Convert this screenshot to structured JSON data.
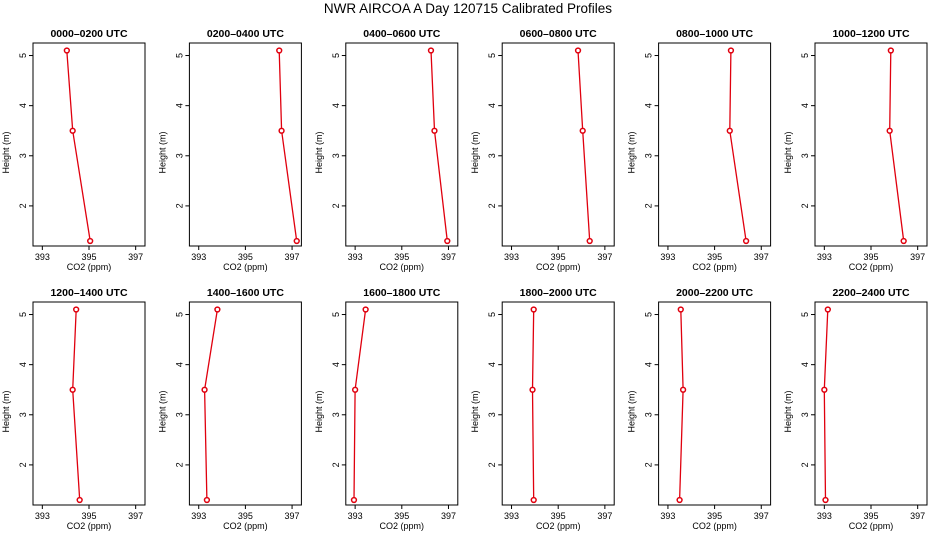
{
  "title": "NWR AIRCOA A  Day 120715  Calibrated Profiles",
  "chart_data": {
    "type": "line",
    "x_label": "CO2 (ppm)",
    "y_label": "Height (m)",
    "x_ticks": [
      393,
      395,
      397
    ],
    "x_tick_labels": [
      "393",
      "395",
      "397"
    ],
    "y_ticks": [
      2,
      3,
      4,
      5
    ],
    "y_tick_labels": [
      "2",
      "3",
      "4",
      "5"
    ],
    "xlim": [
      392.6,
      397.4
    ],
    "ylim": [
      1.2,
      5.25
    ],
    "series_color": "#e0000e",
    "panels": [
      {
        "title": "0000–0200 UTC",
        "points": [
          {
            "x": 395.05,
            "y": 1.3
          },
          {
            "x": 394.3,
            "y": 3.5
          },
          {
            "x": 394.05,
            "y": 5.1
          }
        ]
      },
      {
        "title": "0200–0400 UTC",
        "points": [
          {
            "x": 397.2,
            "y": 1.3
          },
          {
            "x": 396.55,
            "y": 3.5
          },
          {
            "x": 396.45,
            "y": 5.1
          }
        ]
      },
      {
        "title": "0400–0600 UTC",
        "points": [
          {
            "x": 396.95,
            "y": 1.3
          },
          {
            "x": 396.4,
            "y": 3.5
          },
          {
            "x": 396.25,
            "y": 5.1
          }
        ]
      },
      {
        "title": "0600–0800 UTC",
        "points": [
          {
            "x": 396.35,
            "y": 1.3
          },
          {
            "x": 396.05,
            "y": 3.5
          },
          {
            "x": 395.85,
            "y": 5.1
          }
        ]
      },
      {
        "title": "0800–1000 UTC",
        "points": [
          {
            "x": 396.35,
            "y": 1.3
          },
          {
            "x": 395.65,
            "y": 3.5
          },
          {
            "x": 395.7,
            "y": 5.1
          }
        ]
      },
      {
        "title": "1000–1200 UTC",
        "points": [
          {
            "x": 396.4,
            "y": 1.3
          },
          {
            "x": 395.8,
            "y": 3.5
          },
          {
            "x": 395.85,
            "y": 5.1
          }
        ]
      },
      {
        "title": "1200–1400 UTC",
        "points": [
          {
            "x": 394.6,
            "y": 1.3
          },
          {
            "x": 394.3,
            "y": 3.5
          },
          {
            "x": 394.45,
            "y": 5.1
          }
        ]
      },
      {
        "title": "1400–1600 UTC",
        "points": [
          {
            "x": 393.35,
            "y": 1.3
          },
          {
            "x": 393.25,
            "y": 3.5
          },
          {
            "x": 393.8,
            "y": 5.1
          }
        ]
      },
      {
        "title": "1600–1800 UTC",
        "points": [
          {
            "x": 392.95,
            "y": 1.3
          },
          {
            "x": 393.0,
            "y": 3.5
          },
          {
            "x": 393.45,
            "y": 5.1
          }
        ]
      },
      {
        "title": "1800–2000 UTC",
        "points": [
          {
            "x": 393.95,
            "y": 1.3
          },
          {
            "x": 393.9,
            "y": 3.5
          },
          {
            "x": 393.95,
            "y": 5.1
          }
        ]
      },
      {
        "title": "2000–2200 UTC",
        "points": [
          {
            "x": 393.5,
            "y": 1.3
          },
          {
            "x": 393.65,
            "y": 3.5
          },
          {
            "x": 393.55,
            "y": 5.1
          }
        ]
      },
      {
        "title": "2200–2400 UTC",
        "points": [
          {
            "x": 393.05,
            "y": 1.3
          },
          {
            "x": 393.0,
            "y": 3.5
          },
          {
            "x": 393.15,
            "y": 5.1
          }
        ]
      }
    ]
  }
}
